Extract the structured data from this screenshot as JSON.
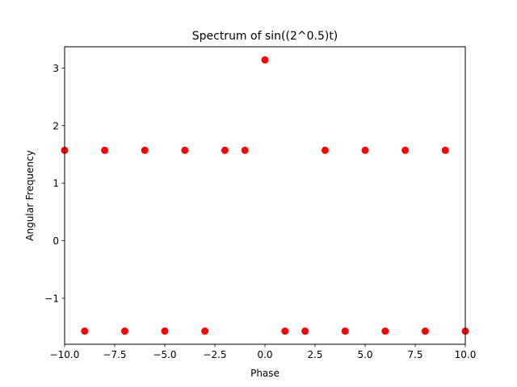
{
  "chart_data": {
    "type": "scatter",
    "title": "Spectrum of sin((2^0.5)t)",
    "xlabel": "Phase",
    "ylabel": "Angular Frequency",
    "xlim": [
      -10,
      10
    ],
    "ylim": [
      -1.8,
      3.37
    ],
    "grid": false,
    "legend": "none",
    "marker_color": "#ff0000",
    "x_ticks": [
      -10.0,
      -7.5,
      -5.0,
      -2.5,
      0.0,
      2.5,
      5.0,
      7.5,
      10.0
    ],
    "x_tick_labels": [
      "−10.0",
      "−7.5",
      "−5.0",
      "−2.5",
      "0.0",
      "2.5",
      "5.0",
      "7.5",
      "10.0"
    ],
    "y_ticks": [
      -1,
      0,
      1,
      2,
      3
    ],
    "y_tick_labels": [
      "−1",
      "0",
      "1",
      "2",
      "3"
    ],
    "points": [
      {
        "x": -10,
        "y": 1.5708
      },
      {
        "x": -9,
        "y": -1.5708
      },
      {
        "x": -8,
        "y": 1.5708
      },
      {
        "x": -7,
        "y": -1.5708
      },
      {
        "x": -6,
        "y": 1.5708
      },
      {
        "x": -5,
        "y": -1.5708
      },
      {
        "x": -4,
        "y": 1.5708
      },
      {
        "x": -3,
        "y": -1.5708
      },
      {
        "x": -2,
        "y": 1.5708
      },
      {
        "x": -1,
        "y": 1.5708
      },
      {
        "x": 0,
        "y": 3.1416
      },
      {
        "x": 1,
        "y": -1.5708
      },
      {
        "x": 2,
        "y": -1.5708
      },
      {
        "x": 3,
        "y": 1.5708
      },
      {
        "x": 4,
        "y": -1.5708
      },
      {
        "x": 5,
        "y": 1.5708
      },
      {
        "x": 6,
        "y": -1.5708
      },
      {
        "x": 7,
        "y": 1.5708
      },
      {
        "x": 8,
        "y": -1.5708
      },
      {
        "x": 9,
        "y": 1.5708
      },
      {
        "x": 10,
        "y": -1.5708
      }
    ]
  }
}
